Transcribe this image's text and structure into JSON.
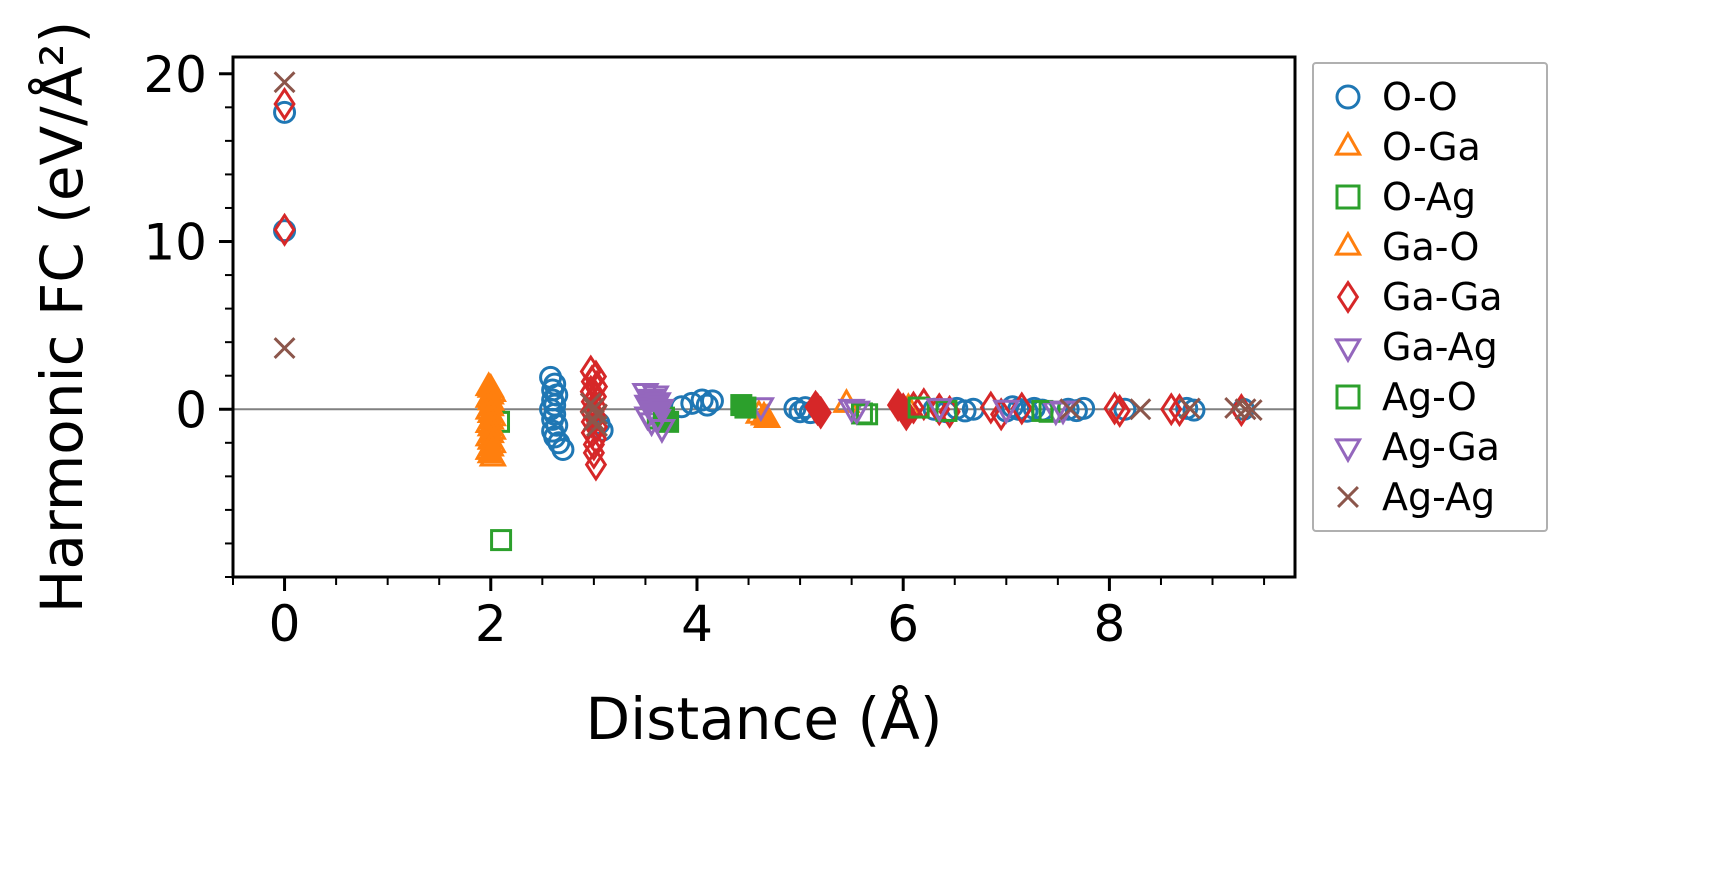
{
  "chart_data": {
    "type": "scatter",
    "title": "",
    "xlabel": "Distance (Å)",
    "ylabel": "Harmonic FC (eV/Å²)",
    "xlim": [
      -0.5,
      9.8
    ],
    "ylim": [
      -10,
      21
    ],
    "xticks": [
      0,
      2,
      4,
      6,
      8
    ],
    "yticks": [
      0,
      10,
      20
    ],
    "grid": false,
    "zero_line": 0,
    "zero_line_color": "#808080",
    "legend_position": "outside-right",
    "series": [
      {
        "name": "O-O",
        "marker": "circle",
        "color": "#1f77b4",
        "points": [
          [
            0,
            17.7
          ],
          [
            0,
            10.65
          ],
          [
            2.58,
            1.9
          ],
          [
            2.62,
            1.5
          ],
          [
            2.6,
            1.15
          ],
          [
            2.64,
            0.85
          ],
          [
            2.6,
            0.55
          ],
          [
            2.62,
            0.25
          ],
          [
            2.58,
            0.0
          ],
          [
            2.62,
            -0.3
          ],
          [
            2.6,
            -0.6
          ],
          [
            2.64,
            -0.95
          ],
          [
            2.6,
            -1.3
          ],
          [
            2.62,
            -1.65
          ],
          [
            2.66,
            -2.0
          ],
          [
            2.7,
            -2.4
          ],
          [
            3.05,
            -0.85
          ],
          [
            3.08,
            -1.25
          ],
          [
            3.85,
            0.15
          ],
          [
            3.95,
            0.35
          ],
          [
            4.05,
            0.55
          ],
          [
            4.15,
            0.5
          ],
          [
            4.1,
            0.25
          ],
          [
            4.95,
            0.05
          ],
          [
            5.0,
            -0.15
          ],
          [
            5.05,
            0.1
          ],
          [
            5.1,
            -0.2
          ],
          [
            6.3,
            0.0
          ],
          [
            6.42,
            -0.15
          ],
          [
            6.52,
            0.05
          ],
          [
            6.6,
            -0.1
          ],
          [
            6.68,
            0.0
          ],
          [
            7.0,
            -0.1
          ],
          [
            7.06,
            0.15
          ],
          [
            7.12,
            0.0
          ],
          [
            7.2,
            -0.12
          ],
          [
            7.27,
            0.05
          ],
          [
            7.35,
            -0.05
          ],
          [
            7.6,
            0.0
          ],
          [
            7.68,
            -0.08
          ],
          [
            7.75,
            0.05
          ],
          [
            8.15,
            0.0
          ],
          [
            8.75,
            0.05
          ],
          [
            8.82,
            -0.05
          ],
          [
            9.3,
            0.0
          ]
        ]
      },
      {
        "name": "O-Ga",
        "marker": "triangle-up",
        "color": "#ff7f0e",
        "points": [
          [
            1.98,
            1.3
          ],
          [
            2.02,
            0.95
          ],
          [
            1.98,
            0.6
          ],
          [
            2.02,
            0.25
          ],
          [
            1.98,
            -0.1
          ],
          [
            2.02,
            -0.5
          ],
          [
            1.98,
            -0.9
          ],
          [
            2.02,
            -1.3
          ],
          [
            1.98,
            -1.7
          ],
          [
            2.02,
            -2.1
          ],
          [
            1.98,
            -2.5
          ],
          [
            2.02,
            -2.9
          ],
          [
            4.6,
            -0.35
          ],
          [
            5.45,
            0.3
          ]
        ]
      },
      {
        "name": "O-Ag",
        "marker": "square",
        "color": "#2ca02c",
        "points": [
          [
            2.08,
            -0.75
          ],
          [
            2.1,
            -7.8
          ],
          [
            3.62,
            -0.55
          ],
          [
            5.6,
            -0.25
          ],
          [
            7.42,
            -0.15
          ]
        ]
      },
      {
        "name": "Ga-O",
        "marker": "triangle-up",
        "color": "#ff7f0e",
        "points": [
          [
            2.0,
            1.2,
            1
          ],
          [
            2.0,
            0.8,
            1
          ],
          [
            2.0,
            0.45,
            1
          ],
          [
            2.0,
            0.1,
            1
          ],
          [
            2.0,
            -0.3,
            1
          ],
          [
            2.0,
            -0.7,
            1
          ],
          [
            2.0,
            -1.1,
            1
          ],
          [
            2.0,
            -1.5,
            1
          ],
          [
            2.0,
            -1.9,
            1
          ],
          [
            2.0,
            -2.3,
            1
          ],
          [
            2.0,
            -2.7,
            1
          ],
          [
            4.65,
            -0.45,
            1
          ],
          [
            4.68,
            -0.6
          ],
          [
            6.05,
            0.05
          ]
        ]
      },
      {
        "name": "Ga-Ga",
        "marker": "diamond",
        "color": "#d62728",
        "points": [
          [
            0,
            18.2
          ],
          [
            0,
            10.7
          ],
          [
            2.97,
            2.25
          ],
          [
            3.02,
            1.95
          ],
          [
            2.98,
            1.65
          ],
          [
            3.03,
            1.35
          ],
          [
            2.97,
            1.05
          ],
          [
            3.02,
            0.75
          ],
          [
            2.98,
            0.45
          ],
          [
            3.02,
            0.15
          ],
          [
            2.97,
            -0.15
          ],
          [
            3.02,
            -0.45
          ],
          [
            2.98,
            -0.75
          ],
          [
            3.03,
            -1.05
          ],
          [
            2.98,
            -1.4
          ],
          [
            3.02,
            -1.75
          ],
          [
            3.0,
            -2.1
          ],
          [
            3.0,
            -2.6
          ],
          [
            3.02,
            -3.3
          ],
          [
            5.15,
            0.15,
            1
          ],
          [
            5.2,
            -0.2,
            1
          ],
          [
            5.17,
            0.0,
            1
          ],
          [
            5.95,
            0.25,
            1
          ],
          [
            6.0,
            0.0,
            1
          ],
          [
            6.03,
            -0.3,
            1
          ],
          [
            6.1,
            0.1
          ],
          [
            6.2,
            0.3
          ],
          [
            6.35,
            0.0
          ],
          [
            6.45,
            -0.15
          ],
          [
            6.85,
            0.1
          ],
          [
            6.95,
            -0.3
          ],
          [
            7.15,
            0.05
          ],
          [
            8.05,
            0.05
          ],
          [
            8.1,
            -0.1
          ],
          [
            8.6,
            0.0
          ],
          [
            8.68,
            -0.05
          ],
          [
            9.28,
            -0.05
          ]
        ]
      },
      {
        "name": "Ga-Ag",
        "marker": "triangle-down",
        "color": "#9467bd",
        "points": [
          [
            3.5,
            1.05
          ],
          [
            3.55,
            0.7,
            1
          ],
          [
            3.52,
            0.35,
            1
          ],
          [
            3.56,
            0.0
          ],
          [
            3.52,
            -0.35
          ],
          [
            3.56,
            -0.7
          ],
          [
            4.62,
            0.2
          ],
          [
            5.5,
            0.1
          ],
          [
            7.0,
            0.05
          ],
          [
            7.48,
            -0.05
          ]
        ]
      },
      {
        "name": "Ag-O",
        "marker": "square",
        "color": "#2ca02c",
        "points": [
          [
            3.68,
            -0.5,
            1
          ],
          [
            3.72,
            -0.75,
            1
          ],
          [
            4.43,
            0.25,
            1
          ],
          [
            4.47,
            0.1,
            1
          ],
          [
            5.65,
            -0.3
          ],
          [
            6.15,
            0.1
          ],
          [
            6.42,
            -0.1
          ],
          [
            7.35,
            -0.1
          ]
        ]
      },
      {
        "name": "Ag-Ga",
        "marker": "triangle-down",
        "color": "#9467bd",
        "points": [
          [
            3.6,
            0.9
          ],
          [
            3.62,
            0.5,
            1
          ],
          [
            3.65,
            0.1,
            1
          ],
          [
            3.62,
            -0.5
          ],
          [
            3.66,
            -1.1
          ],
          [
            5.55,
            0.0
          ],
          [
            6.35,
            0.15
          ],
          [
            7.55,
            0.0
          ]
        ]
      },
      {
        "name": "Ag-Ag",
        "marker": "x",
        "color": "#8c564b",
        "points": [
          [
            0,
            19.5
          ],
          [
            0,
            3.65
          ],
          [
            2.97,
            0.35
          ],
          [
            3.0,
            0.05
          ],
          [
            3.03,
            -0.3
          ],
          [
            3.0,
            -0.65
          ],
          [
            3.03,
            -1.0
          ],
          [
            7.62,
            0.0
          ],
          [
            8.3,
            0.0
          ],
          [
            8.78,
            0.05
          ],
          [
            9.22,
            0.08
          ],
          [
            9.32,
            0.0
          ],
          [
            9.38,
            -0.05
          ]
        ]
      }
    ]
  }
}
